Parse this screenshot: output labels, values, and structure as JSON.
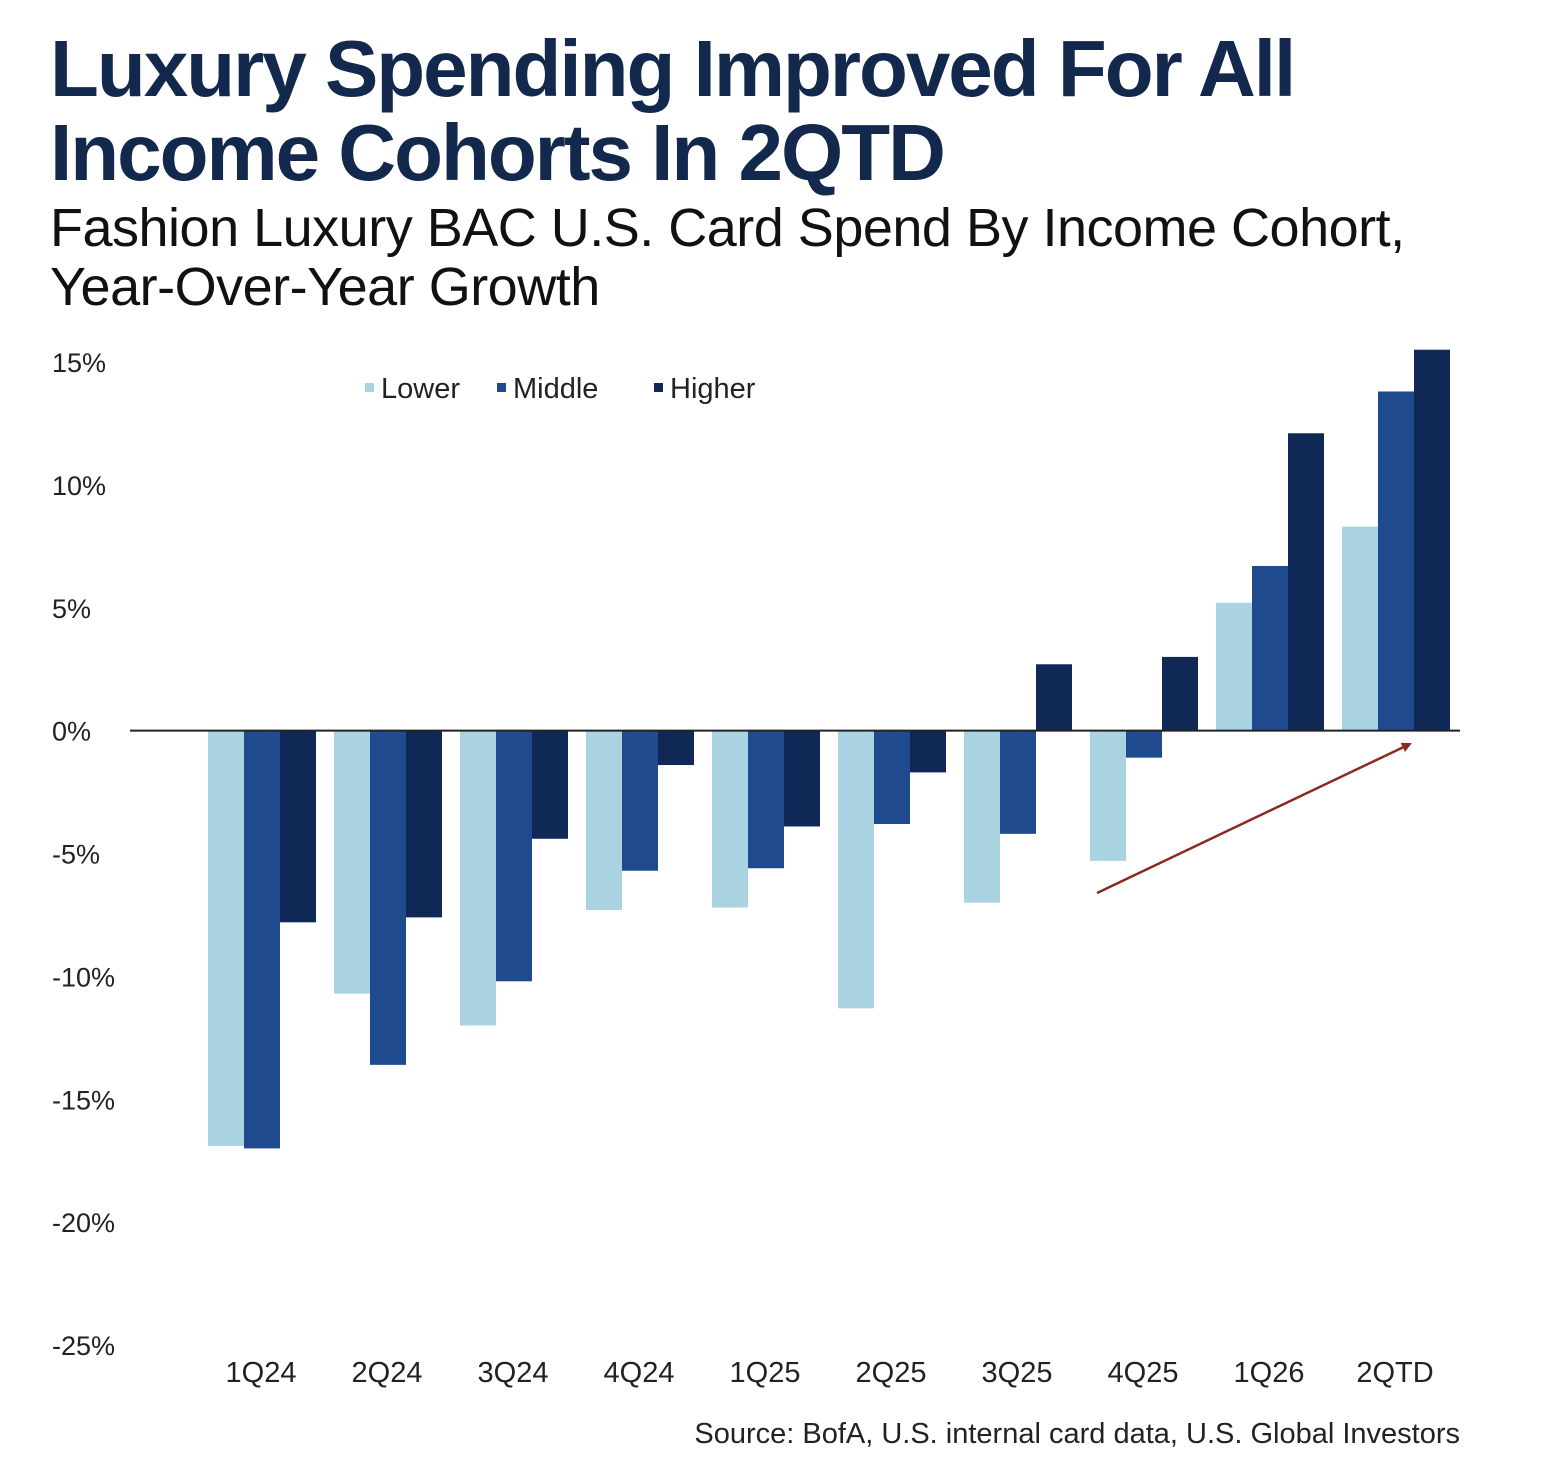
{
  "chart_data": {
    "type": "bar",
    "title_lines": [
      "Luxury Spending Improved For All",
      "Income Cohorts In 2QTD"
    ],
    "subtitle_lines": [
      "Fashion Luxury BAC U.S. Card Spend By Income Cohort,",
      "Year-Over-Year Growth"
    ],
    "categories": [
      "1Q24",
      "2Q24",
      "3Q24",
      "4Q24",
      "1Q25",
      "2Q25",
      "3Q25",
      "4Q25",
      "1Q26",
      "2QTD"
    ],
    "series": [
      {
        "name": "Lower",
        "color": "#a9d3e1",
        "values": [
          -16.9,
          -10.7,
          -12.0,
          -7.3,
          -7.2,
          -11.3,
          -7.0,
          -5.3,
          5.2,
          8.3
        ]
      },
      {
        "name": "Middle",
        "color": "#1f4b8e",
        "values": [
          -17.0,
          -13.6,
          -10.2,
          -5.7,
          -5.6,
          -3.8,
          -4.2,
          -1.1,
          6.7,
          13.8
        ]
      },
      {
        "name": "Higher",
        "color": "#0f2856",
        "values": [
          -7.8,
          -7.6,
          -4.4,
          -1.4,
          -3.9,
          -1.7,
          2.7,
          3.0,
          12.1,
          15.5
        ]
      }
    ],
    "ylim": [
      -25,
      15
    ],
    "yticks": [
      15,
      10,
      5,
      0,
      -5,
      -10,
      -15,
      -20,
      -25
    ],
    "ytick_labels": [
      "15%",
      "10%",
      "5%",
      "0%",
      "-5%",
      "-10%",
      "-15%",
      "-20%",
      "-25%"
    ],
    "grid": false,
    "legend_position": "top",
    "annotation": "trend arrow pointing up toward 2QTD",
    "arrow_color": "#8b2a22",
    "title_color": "#12284c",
    "source": "Source: BofA, U.S. internal card data, U.S. Global Investors"
  }
}
